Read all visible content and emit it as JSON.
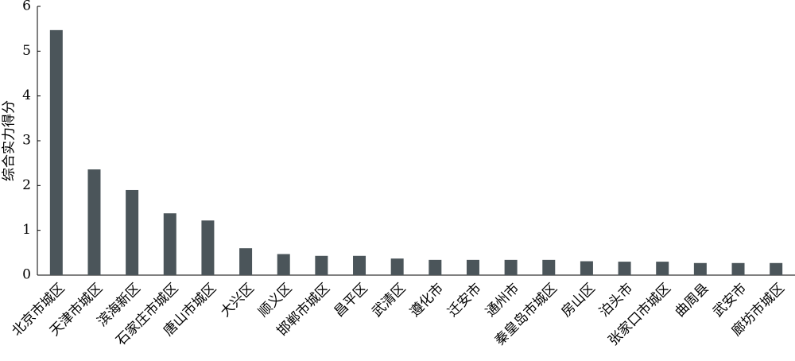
{
  "chart_data": {
    "type": "bar",
    "y_label": "综合实力得分",
    "categories": [
      "北京市城区",
      "天津市城区",
      "滨海新区",
      "石家庄市城区",
      "唐山市城区",
      "大兴区",
      "顺义区",
      "邯郸市城区",
      "昌平区",
      "武清区",
      "遵化市",
      "迁安市",
      "通州市",
      "秦皇岛市城区",
      "房山区",
      "泊头市",
      "张家口市城区",
      "曲周县",
      "武安市",
      "廊坊市城区"
    ],
    "values": [
      5.47,
      2.36,
      1.9,
      1.38,
      1.22,
      0.6,
      0.47,
      0.43,
      0.43,
      0.37,
      0.34,
      0.34,
      0.34,
      0.34,
      0.31,
      0.3,
      0.3,
      0.27,
      0.27,
      0.27
    ],
    "color": "#4b555a",
    "ylim": [
      0,
      6
    ],
    "yticks": [
      0,
      1,
      2,
      3,
      4,
      5,
      6
    ],
    "grid": false
  }
}
